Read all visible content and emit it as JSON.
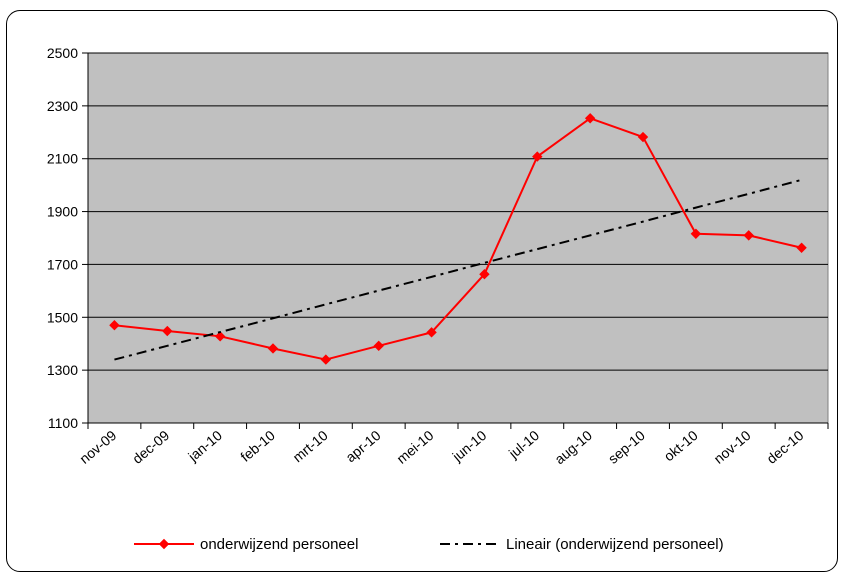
{
  "chart_data": {
    "type": "line",
    "title": "",
    "xlabel": "",
    "ylabel": "",
    "categories": [
      "nov-09",
      "dec-09",
      "jan-10",
      "feb-10",
      "mrt-10",
      "apr-10",
      "mei-10",
      "jun-10",
      "jul-10",
      "aug-10",
      "sep-10",
      "okt-10",
      "nov-10",
      "dec-10"
    ],
    "ylim": [
      1100,
      2500
    ],
    "yticks": [
      1100,
      1300,
      1500,
      1700,
      1900,
      2100,
      2300,
      2500
    ],
    "grid": true,
    "plot_background": "#C0C0C0",
    "legend_position": "bottom",
    "series": [
      {
        "name": "onderwijzend personeel",
        "color": "#FF0000",
        "marker": "diamond",
        "values": [
          1470,
          1448,
          1428,
          1382,
          1340,
          1392,
          1443,
          1663,
          2108,
          2253,
          2182,
          1816,
          1810,
          1763
        ]
      },
      {
        "name": "Lineair (onderwijzend personeel)",
        "color": "#000000",
        "style": "dash-dot",
        "values": [
          1340,
          1392,
          1444,
          1496,
          1549,
          1601,
          1653,
          1706,
          1758,
          1810,
          1862,
          1915,
          1967,
          2020
        ]
      }
    ]
  }
}
